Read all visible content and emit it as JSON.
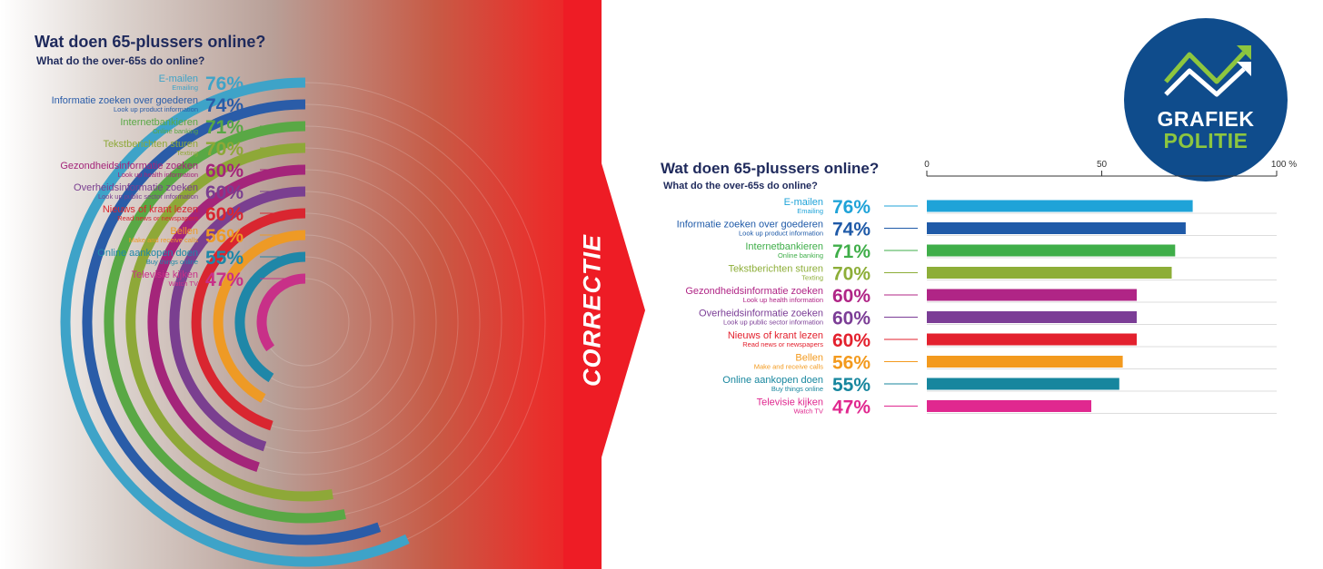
{
  "divider": {
    "label": "CORRECTIE",
    "color": "#ee1c25"
  },
  "logo": {
    "line1": "GRAFIEK",
    "line2": "POLITIE"
  },
  "chart_data": [
    {
      "type": "radial-bar",
      "title": "Wat doen 65-plussers online?",
      "subtitle": "What do the over-65s do online?",
      "categories": [
        "E-mailen",
        "Informatie zoeken over goederen",
        "Internetbankieren",
        "Tekstberichten sturen",
        "Gezondheidsinformatie zoeken",
        "Overheidsinformatie zoeken",
        "Nieuws of krant lezen",
        "Bellen",
        "Online aankopen doen",
        "Televisie kijken"
      ],
      "categories_en": [
        "Emailing",
        "Look up product information",
        "Online banking",
        "Texting",
        "Look up health information",
        "Look up public sector information",
        "Read news or newspapers",
        "Make and receive calls",
        "Buy things online",
        "Watch TV"
      ],
      "values": [
        76,
        74,
        71,
        70,
        60,
        60,
        60,
        56,
        55,
        47
      ],
      "value_labels": [
        "76%",
        "74%",
        "71%",
        "70%",
        "60%",
        "60%",
        "60%",
        "56%",
        "55%",
        "47%"
      ],
      "colors": [
        "#3ea3c8",
        "#2a5ca8",
        "#59a845",
        "#8ea838",
        "#a4257a",
        "#7a3f90",
        "#d92630",
        "#ee9a25",
        "#1f87a8",
        "#c83088"
      ]
    },
    {
      "type": "bar",
      "title": "Wat doen 65-plussers online?",
      "subtitle": "What do the over-65s do online?",
      "categories": [
        "E-mailen",
        "Informatie zoeken over goederen",
        "Internetbankieren",
        "Tekstberichten sturen",
        "Gezondheidsinformatie zoeken",
        "Overheidsinformatie zoeken",
        "Nieuws of krant lezen",
        "Bellen",
        "Online aankopen doen",
        "Televisie kijken"
      ],
      "categories_en": [
        "Emailing",
        "Look up product information",
        "Online banking",
        "Texting",
        "Look up health information",
        "Look up public sector information",
        "Read news or newspapers",
        "Make and receive calls",
        "Buy things online",
        "Watch TV"
      ],
      "values": [
        76,
        74,
        71,
        70,
        60,
        60,
        60,
        56,
        55,
        47
      ],
      "value_labels": [
        "76%",
        "74%",
        "71%",
        "70%",
        "60%",
        "60%",
        "60%",
        "56%",
        "55%",
        "47%"
      ],
      "colors": [
        "#1fa3d8",
        "#1f5aa8",
        "#3fae49",
        "#8dae38",
        "#b02586",
        "#7b3d96",
        "#e3212e",
        "#f39a1e",
        "#17869e",
        "#e0288f"
      ],
      "xlim": [
        0,
        100
      ],
      "xticks": [
        "0",
        "50",
        "100 %"
      ],
      "grid": true
    }
  ]
}
